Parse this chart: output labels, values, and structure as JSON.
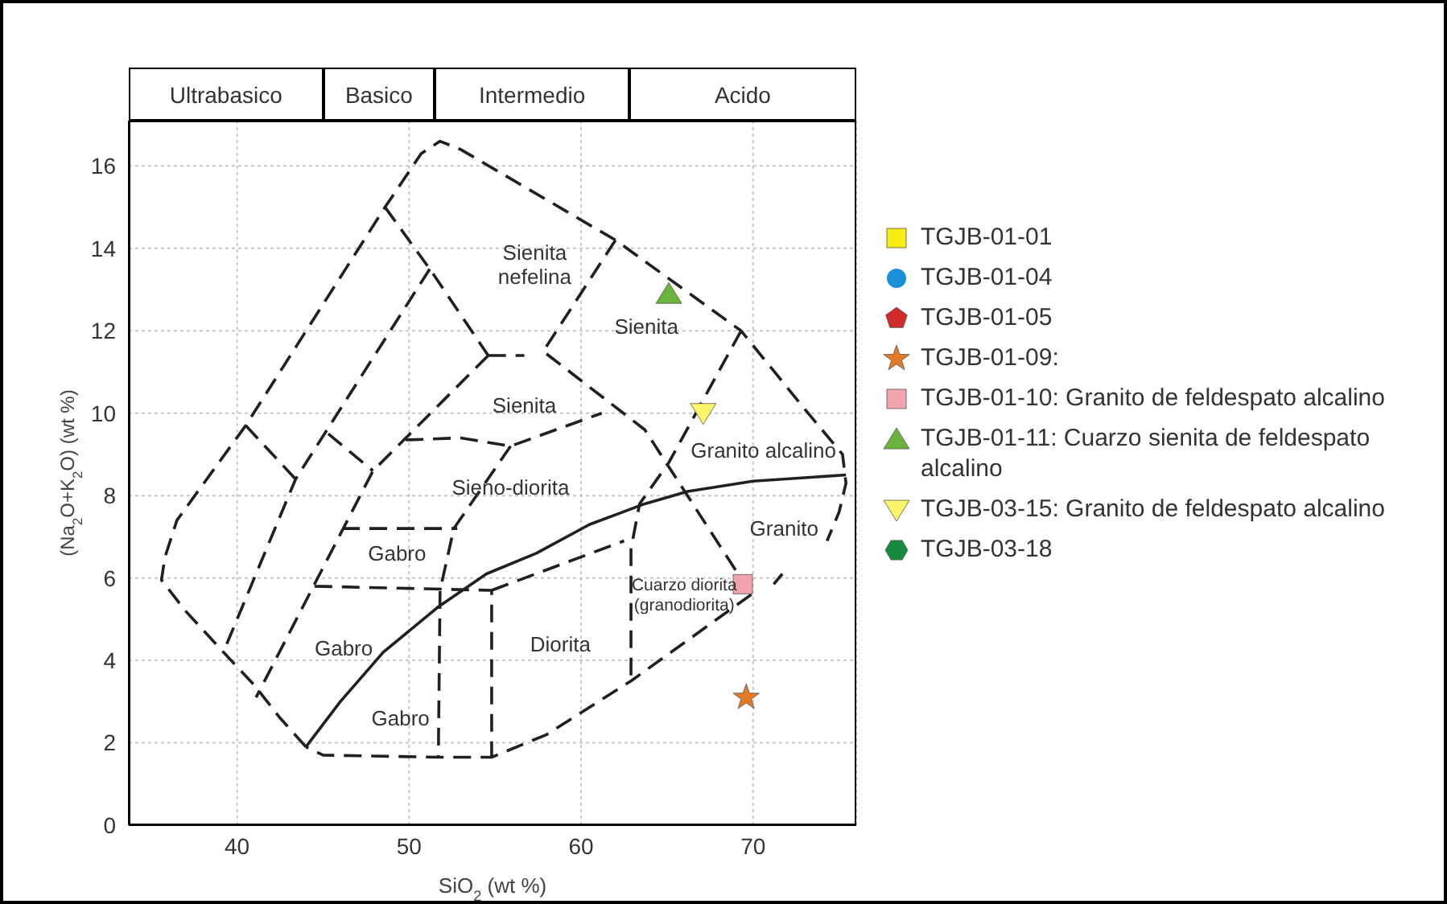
{
  "chart_data": {
    "type": "scatter",
    "xlabel": "SiO$_{2}$ (wt %)",
    "ylabel": "(Na$_{2}$O+K$_{2}$O) (wt %)",
    "xlim": [
      33.7,
      76
    ],
    "ylim": [
      0,
      17.1
    ],
    "xticks": [
      40,
      50,
      60,
      70
    ],
    "yticks": [
      0,
      2,
      4,
      6,
      8,
      10,
      12,
      14,
      16
    ],
    "grid": true,
    "legend": "right",
    "annotations": [
      "Ultrabasico",
      "Basico",
      "Intermedio",
      "Acido",
      "Sienita\nnefelina",
      "Sienita",
      "Sienita",
      "Sieno-diorita",
      "Gabro",
      "Gabro",
      "Gabro",
      "Diorita",
      "Granito alcalino",
      "Granito",
      "Cuarzo diorita\n(granodiorita)"
    ],
    "series": [
      {
        "name": "TGJB-01-01",
        "color": "#f7ec13",
        "marker": "square"
      },
      {
        "name": "TGJB-01-04",
        "color": "#1b8fd8",
        "marker": "circle"
      },
      {
        "name": "TGJB-01-05",
        "color": "#d12a2a",
        "marker": "pentagon"
      },
      {
        "name": "TGJB-01-09:",
        "color": "#e57a26",
        "marker": "star",
        "x": [
          69.6
        ],
        "values": [
          3.1
        ]
      },
      {
        "name": "TGJB-01-10: Granito de feldespato alcalino",
        "color": "#f2a3ad",
        "marker": "square",
        "x": [
          69.4
        ],
        "values": [
          5.85
        ]
      },
      {
        "name": "TGJB-01-11: Cuarzo sienita de feldespato alcalino",
        "color": "#6ab43e",
        "marker": "triangle",
        "x": [
          65.1
        ],
        "values": [
          12.9
        ]
      },
      {
        "name": "TGJB-03-15: Granito de feldespato alcalino",
        "color": "#fbf56a",
        "marker": "triangle-down",
        "x": [
          67.1
        ],
        "values": [
          10.0
        ]
      },
      {
        "name": "TGJB-03-18",
        "color": "#168a3e",
        "marker": "hexagon"
      },
      {
        "type": "line",
        "color": "#231f20",
        "line_style": "dashed",
        "x": [
          44,
          42.5,
          41,
          39.2,
          37,
          35.6,
          35.8,
          36.5,
          40.5,
          48.6,
          50.7,
          51.8,
          53,
          62,
          69.3,
          73,
          75.2,
          75.4,
          75.0,
          74.3,
          null,
          71.2,
          71.7,
          null,
          69.9,
          62.9,
          58,
          54.8,
          51.7,
          45,
          44,
          null,
          48.6,
          51.2,
          54.6,
          null,
          51.2,
          43.4,
          39.2,
          null,
          40.5,
          43.4,
          null,
          54.6,
          47.9,
          41.1,
          null,
          45.3,
          47.9,
          null,
          54.6,
          56.7,
          null,
          62.0,
          57.8,
          63.7,
          69.9,
          null,
          49.8,
          53,
          55.9,
          61.2,
          null,
          55.9,
          52.6,
          51.8,
          51.7,
          null,
          46.1,
          52.8,
          null,
          44.5,
          54.8,
          54.8,
          null,
          54.8,
          62.5,
          null,
          69.3,
          65.1,
          63.4,
          62.9,
          62.9
        ],
        "values": [
          1.9,
          2.6,
          3.4,
          4.2,
          5.2,
          5.95,
          6.5,
          7.4,
          9.7,
          15.0,
          16.3,
          16.6,
          16.4,
          14.2,
          12.0,
          10.1,
          9.0,
          8.3,
          7.6,
          6.9,
          null,
          5.85,
          6.1,
          null,
          5.6,
          3.5,
          2.2,
          1.65,
          1.65,
          1.7,
          1.9,
          null,
          15.0,
          13.5,
          11.4,
          null,
          13.5,
          8.4,
          4.2,
          null,
          9.7,
          8.4,
          null,
          11.4,
          8.6,
          3.1,
          null,
          9.5,
          8.6,
          null,
          11.4,
          11.4,
          null,
          14.2,
          11.5,
          9.6,
          5.6,
          null,
          9.35,
          9.4,
          9.2,
          10.0,
          null,
          9.2,
          7.2,
          5.7,
          1.65,
          null,
          7.2,
          7.2,
          null,
          5.8,
          5.7,
          1.65,
          null,
          5.7,
          6.9,
          null,
          12.0,
          8.8,
          7.8,
          6.7,
          3.5
        ]
      },
      {
        "type": "line",
        "color": "#231f20",
        "line_style": "solid",
        "x": [
          44,
          46,
          48.5,
          51.7,
          54.5,
          57.4,
          60.5,
          63.7,
          66.2,
          70,
          75.4
        ],
        "values": [
          1.9,
          3.0,
          4.2,
          5.3,
          6.1,
          6.6,
          7.3,
          7.8,
          8.1,
          8.35,
          8.5
        ]
      }
    ]
  }
}
